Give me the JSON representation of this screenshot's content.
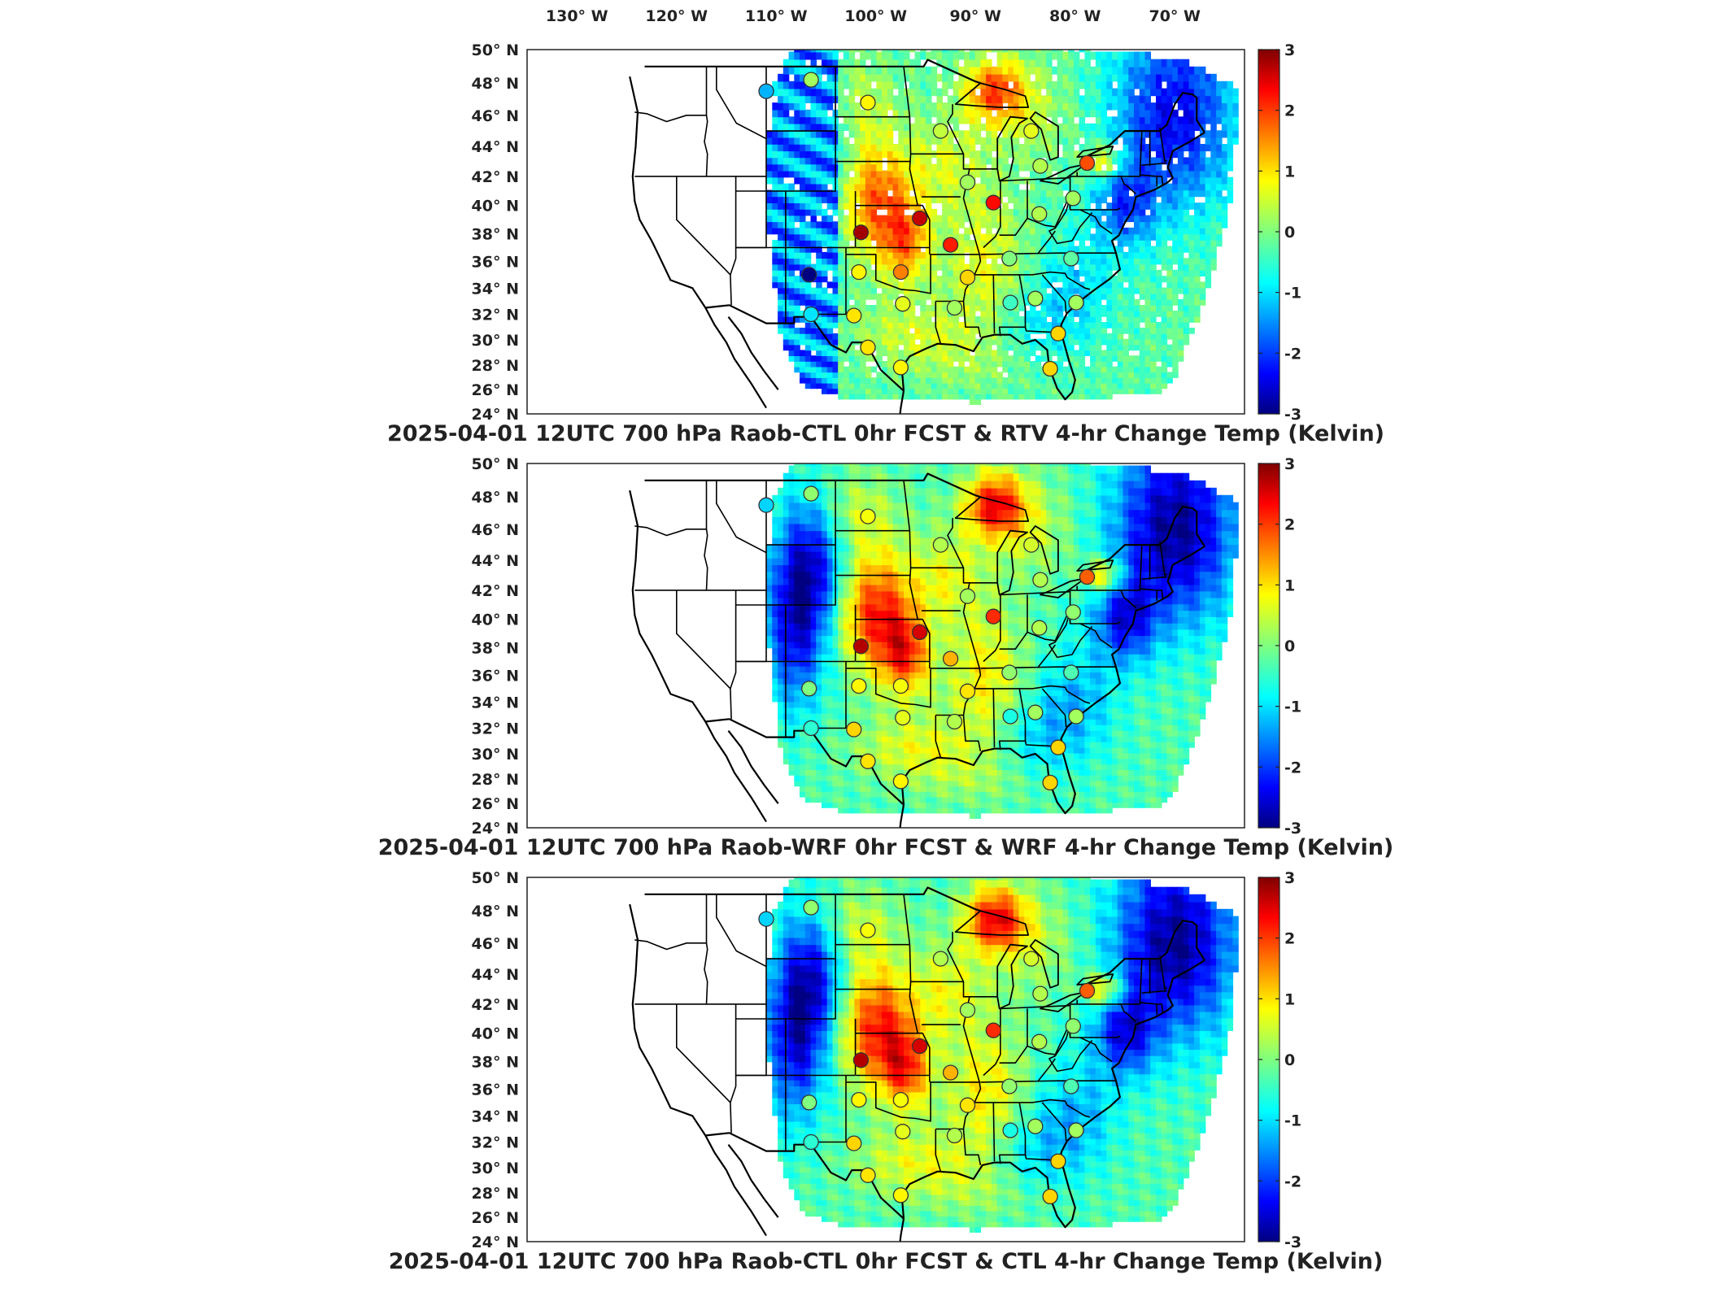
{
  "figure": {
    "lon_labels": [
      "130° W",
      "120° W",
      "110° W",
      "100° W",
      "90° W",
      "80° W",
      "70° W"
    ],
    "lat_labels": [
      "50° N",
      "48° N",
      "46° N",
      "44° N",
      "42° N",
      "40° N",
      "38° N",
      "36° N",
      "34° N",
      "32° N",
      "30° N",
      "28° N",
      "26° N",
      "24° N"
    ],
    "colorbar": {
      "ticks": [
        "3",
        "2",
        "1",
        "0",
        "-1",
        "-2",
        "-3"
      ],
      "range": [
        -3,
        3
      ],
      "colormap": "jet"
    }
  },
  "panels": [
    {
      "title": "2025-04-01 12UTC 700 hPa Raob-CTL 0hr FCST & RTV 4-hr Change Temp (Kelvin)",
      "field": "RTV 4-hr Change Temp",
      "field_has_gaps": true
    },
    {
      "title": "2025-04-01 12UTC 700 hPa Raob-WRF 0hr FCST & WRF 4-hr Change Temp (Kelvin)",
      "field": "WRF 4-hr Change Temp",
      "field_has_gaps": false
    },
    {
      "title": "2025-04-01 12UTC 700 hPa Raob-CTL 0hr FCST & CTL 4-hr Change Temp (Kelvin)",
      "field": "CTL 4-hr Change Temp",
      "field_has_gaps": false
    }
  ],
  "raob_stations": [
    {
      "lon": -111.0,
      "lat": 47.5,
      "values": [
        -1.2,
        -1.0,
        -1.0
      ]
    },
    {
      "lon": -106.5,
      "lat": 48.2,
      "values": [
        0.2,
        0.1,
        0.1
      ]
    },
    {
      "lon": -100.8,
      "lat": 46.8,
      "values": [
        0.8,
        0.7,
        0.7
      ]
    },
    {
      "lon": -93.5,
      "lat": 45.0,
      "values": [
        0.4,
        0.3,
        0.3
      ]
    },
    {
      "lon": -84.4,
      "lat": 45.0,
      "values": [
        0.6,
        0.5,
        0.5
      ]
    },
    {
      "lon": -83.5,
      "lat": 42.7,
      "values": [
        0.3,
        0.3,
        0.3
      ]
    },
    {
      "lon": -78.8,
      "lat": 42.9,
      "values": [
        1.8,
        1.7,
        1.7
      ]
    },
    {
      "lon": -90.8,
      "lat": 41.6,
      "values": [
        0.2,
        0.2,
        0.2
      ]
    },
    {
      "lon": -88.2,
      "lat": 40.2,
      "values": [
        2.2,
        2.0,
        2.0
      ]
    },
    {
      "lon": -83.6,
      "lat": 39.4,
      "values": [
        0.3,
        0.3,
        0.3
      ]
    },
    {
      "lon": -80.2,
      "lat": 40.5,
      "values": [
        0.2,
        0.1,
        0.1
      ]
    },
    {
      "lon": -101.5,
      "lat": 38.1,
      "values": [
        2.8,
        2.7,
        2.7
      ]
    },
    {
      "lon": -95.6,
      "lat": 39.1,
      "values": [
        2.6,
        2.5,
        2.5
      ]
    },
    {
      "lon": -92.5,
      "lat": 37.2,
      "values": [
        2.1,
        1.2,
        1.2
      ]
    },
    {
      "lon": -106.7,
      "lat": 35.0,
      "values": [
        -3.0,
        0.0,
        0.0
      ]
    },
    {
      "lon": -101.7,
      "lat": 35.2,
      "values": [
        0.8,
        0.8,
        0.8
      ]
    },
    {
      "lon": -97.5,
      "lat": 35.2,
      "values": [
        1.5,
        0.7,
        0.7
      ]
    },
    {
      "lon": -90.8,
      "lat": 34.8,
      "values": [
        1.0,
        0.9,
        0.9
      ]
    },
    {
      "lon": -86.6,
      "lat": 36.2,
      "values": [
        0.0,
        0.1,
        0.1
      ]
    },
    {
      "lon": -80.4,
      "lat": 36.2,
      "values": [
        -0.2,
        -0.3,
        -0.3
      ]
    },
    {
      "lon": -106.5,
      "lat": 32.0,
      "values": [
        -0.9,
        -0.5,
        -0.5
      ]
    },
    {
      "lon": -102.2,
      "lat": 31.9,
      "values": [
        0.9,
        1.0,
        1.0
      ]
    },
    {
      "lon": -97.3,
      "lat": 32.8,
      "values": [
        0.6,
        0.6,
        0.6
      ]
    },
    {
      "lon": -92.1,
      "lat": 32.5,
      "values": [
        0.2,
        0.3,
        0.3
      ]
    },
    {
      "lon": -86.5,
      "lat": 32.9,
      "values": [
        -0.4,
        -0.6,
        -0.6
      ]
    },
    {
      "lon": -84.0,
      "lat": 33.2,
      "values": [
        0.2,
        0.2,
        0.2
      ]
    },
    {
      "lon": -79.9,
      "lat": 32.9,
      "values": [
        0.2,
        0.2,
        0.2
      ]
    },
    {
      "lon": -81.7,
      "lat": 30.5,
      "values": [
        1.0,
        1.0,
        1.0
      ]
    },
    {
      "lon": -100.8,
      "lat": 29.4,
      "values": [
        0.9,
        0.9,
        0.9
      ]
    },
    {
      "lon": -97.5,
      "lat": 27.8,
      "values": [
        0.8,
        0.8,
        0.8
      ]
    },
    {
      "lon": -82.5,
      "lat": 27.7,
      "values": [
        1.0,
        1.0,
        1.0
      ]
    }
  ]
}
